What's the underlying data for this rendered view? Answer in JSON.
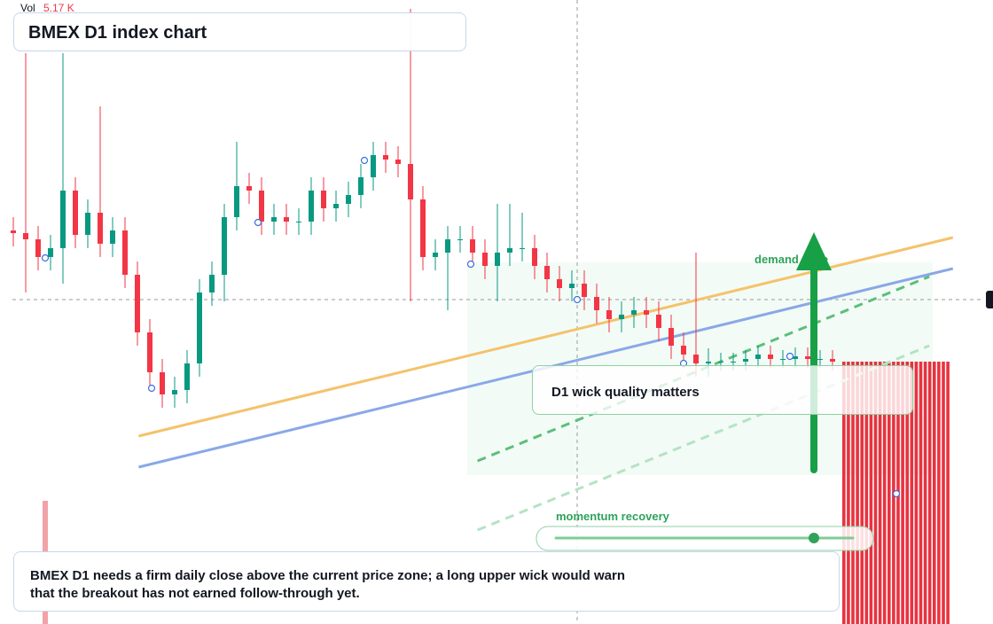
{
  "chart_data": {
    "type": "candlestick",
    "title": "BMEX D1 index chart",
    "volume_label": "Vol",
    "volume_value": "5.17 K",
    "ylim": [
      40,
      110.4
    ],
    "up_color": "#089981",
    "down_color": "#f23645",
    "open": [
      84.4,
      84.1,
      83.4,
      81.4,
      82.4,
      88.9,
      83.9,
      86.4,
      82.9,
      84.4,
      79.4,
      72.9,
      68.4,
      65.9,
      66.4,
      69.4,
      77.4,
      79.4,
      85.9,
      89.4,
      88.9,
      85.4,
      85.9,
      85.4,
      85.4,
      88.9,
      86.9,
      87.4,
      88.4,
      90.4,
      92.9,
      92.4,
      91.9,
      87.9,
      81.4,
      81.9,
      83.4,
      83.4,
      81.9,
      80.4,
      81.9,
      82.4,
      82.4,
      80.4,
      78.9,
      77.9,
      78.4,
      76.9,
      75.4,
      74.4,
      74.9,
      75.4,
      74.9,
      73.4,
      71.4,
      70.4,
      69.4,
      69.6,
      69.6,
      69.6,
      69.9,
      70.4,
      69.9,
      69.9,
      70.2,
      69.9,
      69.9
    ],
    "high": [
      85.9,
      104.4,
      84.9,
      83.9,
      104.4,
      90.4,
      87.9,
      98.4,
      85.9,
      85.9,
      80.9,
      74.4,
      69.9,
      67.9,
      70.9,
      78.9,
      80.9,
      87.4,
      94.4,
      90.9,
      90.4,
      87.4,
      87.4,
      86.9,
      90.4,
      90.4,
      88.9,
      89.9,
      91.9,
      94.4,
      94.4,
      93.9,
      109.4,
      89.4,
      83.4,
      84.9,
      84.9,
      84.9,
      83.4,
      87.4,
      87.4,
      86.4,
      83.9,
      81.9,
      80.4,
      79.9,
      79.9,
      78.4,
      76.9,
      76.4,
      76.9,
      76.9,
      76.4,
      74.9,
      72.9,
      81.9,
      71.1,
      70.6,
      70.6,
      70.9,
      71.4,
      71.4,
      70.9,
      71.2,
      71.2,
      70.9,
      70.9
    ],
    "low": [
      82.6,
      77.4,
      79.9,
      79.9,
      78.4,
      82.4,
      82.4,
      81.4,
      81.4,
      77.9,
      71.4,
      66.9,
      64.4,
      64.4,
      64.9,
      67.9,
      75.9,
      76.4,
      84.4,
      87.4,
      83.9,
      83.9,
      83.9,
      83.9,
      83.9,
      85.4,
      85.4,
      85.9,
      86.9,
      88.9,
      90.9,
      90.4,
      76.4,
      79.9,
      79.9,
      75.4,
      81.9,
      80.4,
      78.9,
      76.4,
      80.4,
      80.9,
      78.9,
      77.4,
      76.4,
      76.4,
      75.4,
      73.9,
      72.9,
      72.9,
      73.4,
      73.4,
      71.9,
      69.9,
      68.9,
      67.9,
      67.9,
      68.6,
      68.6,
      68.6,
      68.9,
      68.9,
      68.9,
      68.9,
      68.9,
      68.9,
      68.6
    ],
    "close": [
      84.1,
      83.4,
      81.4,
      82.4,
      88.9,
      83.9,
      86.4,
      82.9,
      84.4,
      79.4,
      72.9,
      68.4,
      65.9,
      66.4,
      69.4,
      77.4,
      79.4,
      85.9,
      89.4,
      88.9,
      85.4,
      85.9,
      85.4,
      85.4,
      88.9,
      86.9,
      87.4,
      88.4,
      90.4,
      92.9,
      92.4,
      91.9,
      87.9,
      81.4,
      81.9,
      83.4,
      83.4,
      81.9,
      80.4,
      81.9,
      82.4,
      82.4,
      80.4,
      78.9,
      77.9,
      78.4,
      76.9,
      75.4,
      74.4,
      74.9,
      75.4,
      74.9,
      73.4,
      71.4,
      70.4,
      69.4,
      69.6,
      69.6,
      69.6,
      69.9,
      70.4,
      69.9,
      69.9,
      70.2,
      69.9,
      69.9,
      69.6
    ],
    "lines": [
      {
        "color": "#f5c26b",
        "dashed": false,
        "x": [
          10.1,
          75.7
        ],
        "y": [
          61.2,
          83.6
        ]
      },
      {
        "color": "#8aa8e8",
        "dashed": false,
        "x": [
          10.1,
          75.7
        ],
        "y": [
          57.7,
          80.1
        ]
      },
      {
        "color": "#5cbf7a",
        "dashed": true,
        "x": [
          37.4,
          73.8
        ],
        "y": [
          58.4,
          79.2
        ]
      },
      {
        "color": "#b5e3c3",
        "dashed": true,
        "x": [
          37.4,
          73.8
        ],
        "y": [
          50.6,
          71.4
        ]
      }
    ],
    "volume": {
      "color": "#e8323f",
      "values": [
        2.96,
        2.96,
        2.96,
        2.96,
        2.96,
        2.96,
        2.96,
        2.96,
        2.96,
        2.96,
        2.96,
        2.96,
        2.96,
        2.96,
        2.96,
        2.96,
        2.96,
        2.96,
        2.96,
        2.96,
        2.96,
        2.96,
        2.96,
        2.96
      ]
    },
    "annotations": {
      "demand": "demand zone",
      "wick": "D1 wick quality matters",
      "momentum": "momentum recovery",
      "note": "BMEX D1 needs a firm daily close above the current price zone; a long upper wick would warn that the breakout has not earned follow-through yet."
    }
  }
}
